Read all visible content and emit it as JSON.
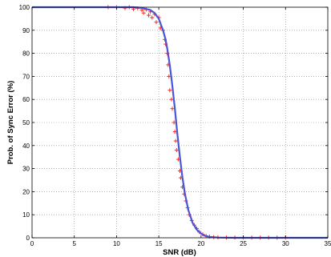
{
  "chart_data": {
    "type": "scatter",
    "title": "",
    "xlabel": "SNR (dB)",
    "ylabel": "Prob. of Sync Error (%)",
    "xlim": [
      0,
      35
    ],
    "ylim": [
      0,
      100
    ],
    "xticks": [
      0,
      5,
      10,
      15,
      20,
      25,
      30,
      35
    ],
    "yticks": [
      0,
      10,
      20,
      30,
      40,
      50,
      60,
      70,
      80,
      90,
      100
    ],
    "grid": "dotted",
    "legend": "none",
    "series": [
      {
        "kind": "scatter",
        "marker": "+",
        "color": "#ff2a1a",
        "values": [
          [
            9.0,
            100
          ],
          [
            10.0,
            100
          ],
          [
            11.0,
            99.6
          ],
          [
            11.5,
            100
          ],
          [
            12.0,
            99.2
          ],
          [
            12.5,
            99.5
          ],
          [
            13.0,
            98.8
          ],
          [
            13.2,
            97.5
          ],
          [
            13.5,
            99
          ],
          [
            13.8,
            96.5
          ],
          [
            14.0,
            98
          ],
          [
            14.2,
            95.5
          ],
          [
            14.5,
            97
          ],
          [
            14.7,
            93.5
          ],
          [
            15.0,
            95.5
          ],
          [
            15.2,
            91
          ],
          [
            15.5,
            90
          ],
          [
            15.7,
            86
          ],
          [
            15.8,
            84
          ],
          [
            16.0,
            80
          ],
          [
            16.1,
            75
          ],
          [
            16.2,
            70
          ],
          [
            16.3,
            64
          ],
          [
            16.5,
            60
          ],
          [
            16.6,
            56
          ],
          [
            16.8,
            50
          ],
          [
            16.9,
            46
          ],
          [
            17.0,
            42
          ],
          [
            17.1,
            38
          ],
          [
            17.3,
            34
          ],
          [
            17.5,
            29
          ],
          [
            17.6,
            26
          ],
          [
            17.8,
            22
          ],
          [
            18.0,
            19
          ],
          [
            18.2,
            16
          ],
          [
            18.4,
            13
          ],
          [
            18.6,
            10
          ],
          [
            18.9,
            7.5
          ],
          [
            19.2,
            5.5
          ],
          [
            19.5,
            4
          ],
          [
            19.8,
            2.5
          ],
          [
            20.2,
            1.5
          ],
          [
            20.6,
            0.8
          ],
          [
            21.0,
            0.5
          ],
          [
            21.5,
            0.3
          ],
          [
            22.0,
            0.2
          ],
          [
            23.0,
            0.1
          ],
          [
            24.0,
            0.1
          ],
          [
            25.0,
            0.1
          ],
          [
            26.0,
            0.1
          ],
          [
            27.0,
            0.1
          ],
          [
            28.0,
            0.1
          ],
          [
            29.0,
            0.1
          ],
          [
            30.0,
            0.1
          ]
        ]
      },
      {
        "kind": "line",
        "color": "#4a55d8",
        "values": [
          [
            0,
            100
          ],
          [
            12.0,
            100
          ],
          [
            13.0,
            99.7
          ],
          [
            14.0,
            98.8
          ],
          [
            14.5,
            97.5
          ],
          [
            15.0,
            95
          ],
          [
            15.5,
            90
          ],
          [
            15.8,
            86
          ],
          [
            16.0,
            82
          ],
          [
            16.3,
            75
          ],
          [
            16.6,
            66
          ],
          [
            16.9,
            56
          ],
          [
            17.2,
            45
          ],
          [
            17.5,
            35
          ],
          [
            17.8,
            26
          ],
          [
            18.1,
            19
          ],
          [
            18.5,
            12
          ],
          [
            19.0,
            6.5
          ],
          [
            19.5,
            3.5
          ],
          [
            20.0,
            1.8
          ],
          [
            20.5,
            0.8
          ],
          [
            21.0,
            0.4
          ],
          [
            22.0,
            0.1
          ],
          [
            24.0,
            0
          ],
          [
            35.0,
            0
          ]
        ]
      }
    ]
  }
}
